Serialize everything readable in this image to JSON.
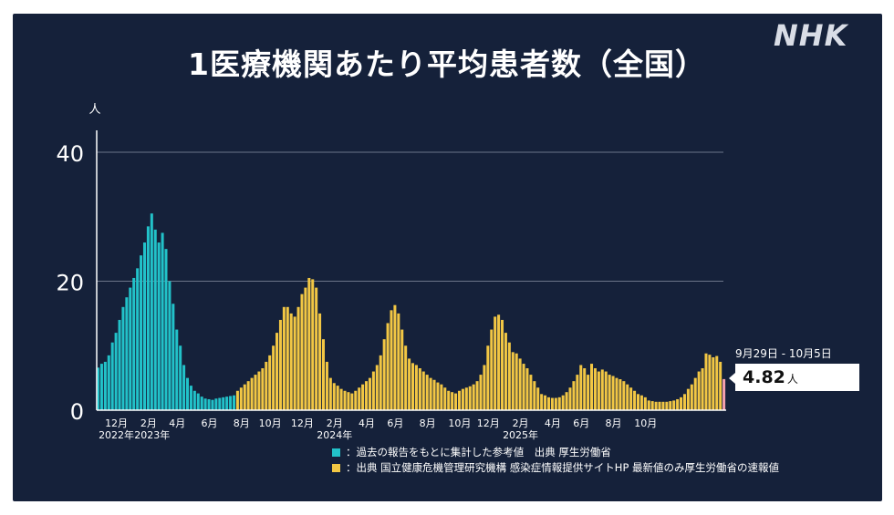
{
  "title": "1医療機関あたり平均患者数（全国）",
  "brand": "NHK",
  "colors": {
    "background": "#15213a",
    "series_past": "#22c2c9",
    "series_current": "#f2c744",
    "latest": "#f4a0ae",
    "grid": "#6c7589",
    "text": "#ffffff"
  },
  "callout": {
    "date_range": "9月29日 - 10月5日",
    "value": "4.82",
    "unit": "人"
  },
  "legend": [
    {
      "color": "#22c2c9",
      "text": "：過去の報告をもとに集計した参考値　出典 厚生労働省"
    },
    {
      "color": "#f2c744",
      "text": "：出典 国立健康危機管理研究機構 感染症情報提供サイトHP 最新値のみ厚生労働省の速報値"
    }
  ],
  "chart_data": {
    "type": "bar",
    "title": "1医療機関あたり平均患者数（全国）",
    "ylabel": "人",
    "xlabel": "",
    "ylim": [
      0,
      43
    ],
    "yticks": [
      0,
      20,
      40
    ],
    "grid": true,
    "x_tick_labels": [
      {
        "label": "12月",
        "week": 5
      },
      {
        "label": "2月",
        "week": 14
      },
      {
        "label": "4月",
        "week": 22
      },
      {
        "label": "6月",
        "week": 31
      },
      {
        "label": "8月",
        "week": 40
      },
      {
        "label": "10月",
        "week": 48
      },
      {
        "label": "12月",
        "week": 57
      },
      {
        "label": "2月",
        "week": 66
      },
      {
        "label": "4月",
        "week": 75
      },
      {
        "label": "6月",
        "week": 83
      },
      {
        "label": "8月",
        "week": 92
      },
      {
        "label": "10月",
        "week": 101
      },
      {
        "label": "12月",
        "week": 109
      },
      {
        "label": "2月",
        "week": 118
      },
      {
        "label": "4月",
        "week": 127
      },
      {
        "label": "6月",
        "week": 135
      },
      {
        "label": "8月",
        "week": 144
      },
      {
        "label": "10月",
        "week": 153
      }
    ],
    "year_labels": [
      {
        "label": "2022年",
        "week": 5
      },
      {
        "label": "2023年",
        "week": 15
      },
      {
        "label": "2024年",
        "week": 66
      },
      {
        "label": "2025年",
        "week": 118
      }
    ],
    "series": [
      {
        "name": "過去の報告をもとに集計した参考値",
        "color": "#22c2c9",
        "values": [
          6.6,
          7.2,
          7.5,
          8.5,
          10.5,
          12,
          14,
          16,
          17.5,
          19,
          20.5,
          22,
          24,
          26,
          28.5,
          30.5,
          28,
          26,
          27.5,
          25,
          20,
          16.5,
          12.5,
          10,
          7,
          5,
          3.8,
          3,
          2.6,
          2.1,
          1.8,
          1.7,
          1.6,
          1.8,
          1.9,
          2,
          2.1,
          2.2,
          2.3
        ]
      },
      {
        "name": "出典 国立健康危機管理研究機構 感染症情報提供サイトHP",
        "color": "#f2c744",
        "values": [
          3,
          3.5,
          4,
          4.5,
          5,
          5.5,
          6,
          6.5,
          7.5,
          8.5,
          10,
          12,
          14,
          16,
          16,
          15,
          14.5,
          16,
          18,
          19,
          20.5,
          20.3,
          19,
          15,
          11,
          7.5,
          5,
          4.2,
          3.8,
          3.3,
          3,
          2.8,
          2.6,
          3,
          3.5,
          4,
          4.5,
          5,
          6,
          7,
          8.5,
          11,
          13.5,
          15.5,
          16.3,
          15,
          12.5,
          10,
          8,
          7.3,
          7,
          6.5,
          6,
          5.5,
          5,
          4.7,
          4.3,
          4,
          3.5,
          3,
          2.8,
          2.6,
          3,
          3.3,
          3.5,
          3.7,
          4,
          4.5,
          5.5,
          7,
          10,
          12.5,
          14.5,
          14.8,
          14,
          12,
          10.5,
          9,
          8.8,
          8,
          7.2,
          6.5,
          5.5,
          4.5,
          3.5,
          2.5,
          2.3,
          2,
          1.9,
          1.9,
          2,
          2.3,
          2.8,
          3.5,
          4.5,
          5.5,
          7,
          6.5,
          5.5,
          7.2,
          6.5,
          6,
          6.3,
          6,
          5.5,
          5.3,
          5,
          4.8,
          4.5,
          4,
          3.5,
          3,
          2.5,
          2.3,
          2,
          1.5,
          1.4,
          1.3,
          1.3,
          1.3,
          1.3,
          1.4,
          1.5,
          1.7,
          2,
          2.5,
          3.3,
          4,
          5,
          6,
          6.5,
          8.8,
          8.6,
          8.2,
          8.4,
          7.5
        ]
      },
      {
        "name": "最新値のみ厚生労働省の速報値",
        "color": "#f4a0ae",
        "values": [
          4.82
        ]
      }
    ]
  }
}
